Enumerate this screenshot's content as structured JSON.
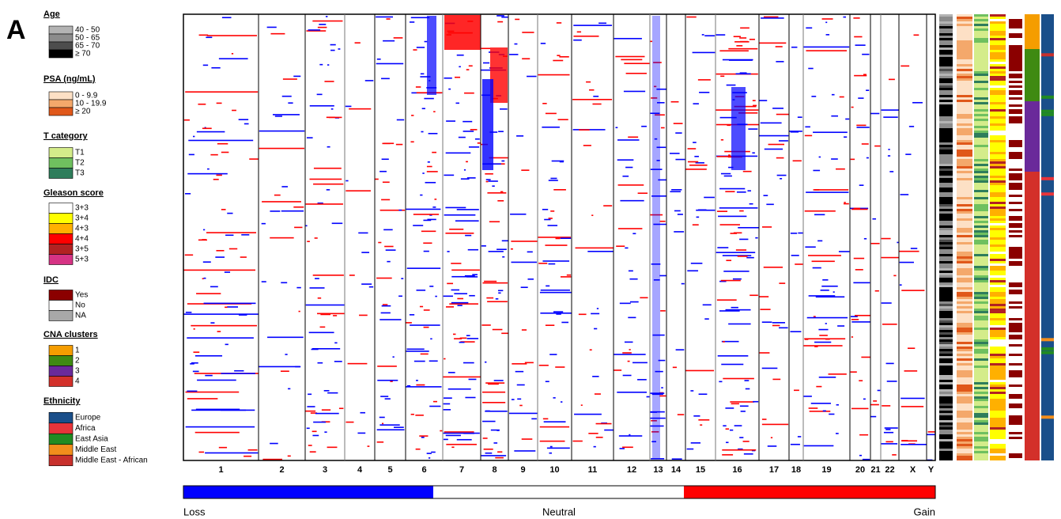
{
  "panel_label": "A",
  "legends": [
    {
      "title": "Age",
      "items": [
        {
          "label": "40 - 50",
          "color": "#b3b3b3"
        },
        {
          "label": "50 - 65",
          "color": "#8c8c8c"
        },
        {
          "label": "65 - 70",
          "color": "#4d4d4d"
        },
        {
          "label": "≥ 70",
          "color": "#000000"
        }
      ]
    },
    {
      "title": "PSA (ng/mL)",
      "items": [
        {
          "label": "0 - 9.9",
          "color": "#fde0c5"
        },
        {
          "label": "10 - 19.9",
          "color": "#f4a86b"
        },
        {
          "label": "≥ 20",
          "color": "#e0581a"
        }
      ]
    },
    {
      "title": "T category",
      "items": [
        {
          "label": "T1",
          "color": "#d4ec8a"
        },
        {
          "label": "T2",
          "color": "#6fc05f"
        },
        {
          "label": "T3",
          "color": "#2e7d5b"
        }
      ]
    },
    {
      "title": "Gleason score",
      "items": [
        {
          "label": "3+3",
          "color": "#ffffff"
        },
        {
          "label": "3+4",
          "color": "#ffff00"
        },
        {
          "label": "4+3",
          "color": "#ffb000"
        },
        {
          "label": "4+4",
          "color": "#ff0000"
        },
        {
          "label": "3+5",
          "color": "#b22222"
        },
        {
          "label": "5+3",
          "color": "#d63384"
        }
      ]
    },
    {
      "title": "IDC",
      "items": [
        {
          "label": "Yes",
          "color": "#8b0000"
        },
        {
          "label": "No",
          "color": "#ffffff"
        },
        {
          "label": "NA",
          "color": "#a8a8a8"
        }
      ]
    },
    {
      "title": "CNA clusters",
      "items": [
        {
          "label": "1",
          "color": "#f59d00"
        },
        {
          "label": "2",
          "color": "#3f8a12"
        },
        {
          "label": "3",
          "color": "#6a2a9a"
        },
        {
          "label": "4",
          "color": "#d3302a"
        }
      ]
    },
    {
      "title": "Ethnicity",
      "items": [
        {
          "label": "Europe",
          "color": "#1a4f8a"
        },
        {
          "label": "Africa",
          "color": "#e8343a"
        },
        {
          "label": "East Asia",
          "color": "#228b22"
        },
        {
          "label": "Middle East",
          "color": "#f28e1c"
        },
        {
          "label": "Middle East - African",
          "color": "#c8302c"
        }
      ]
    }
  ],
  "chromosomes": [
    "1",
    "2",
    "3",
    "4",
    "5",
    "6",
    "7",
    "8",
    "9",
    "10",
    "11",
    "12",
    "13",
    "14",
    "15",
    "16",
    "17",
    "18",
    "19",
    "20",
    "21",
    "22",
    "X",
    "Y"
  ],
  "colorbar": {
    "low": "Loss",
    "mid": "Neutral",
    "high": "Gain",
    "low_color": "#0000ff",
    "mid_color": "#ffffff",
    "high_color": "#ff0000"
  }
}
